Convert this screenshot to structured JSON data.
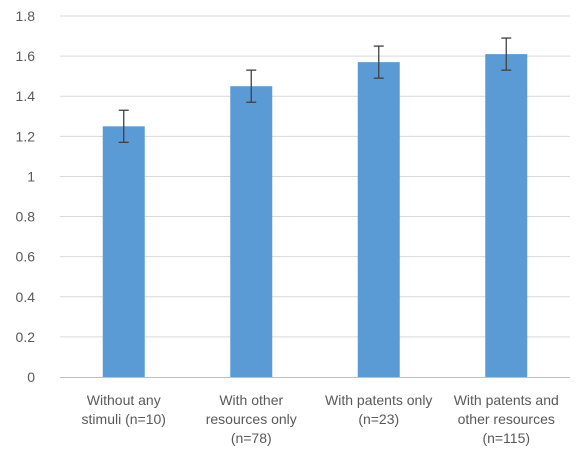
{
  "chart_data": {
    "type": "bar",
    "title": "",
    "xlabel": "",
    "ylabel": "",
    "ylim": [
      0,
      1.8
    ],
    "yticks": [
      0,
      0.2,
      0.4,
      0.6,
      0.8,
      1,
      1.2,
      1.4,
      1.6,
      1.8
    ],
    "ytick_labels": [
      "0",
      "0.2",
      "0.4",
      "0.6",
      "0.8",
      "1",
      "1.2",
      "1.4",
      "1.6",
      "1.8"
    ],
    "grid": true,
    "legend": "none",
    "bar_color": "#5b9bd5",
    "categories": [
      [
        "Without any",
        "stimuli (n=10)"
      ],
      [
        "With other",
        "resources only",
        "(n=78)"
      ],
      [
        "With patents only",
        "(n=23)"
      ],
      [
        "With patents and",
        "other resources",
        "(n=115)"
      ]
    ],
    "values": [
      1.25,
      1.45,
      1.57,
      1.61
    ],
    "error_low": [
      1.17,
      1.37,
      1.49,
      1.53
    ],
    "error_high": [
      1.33,
      1.53,
      1.65,
      1.69
    ]
  }
}
